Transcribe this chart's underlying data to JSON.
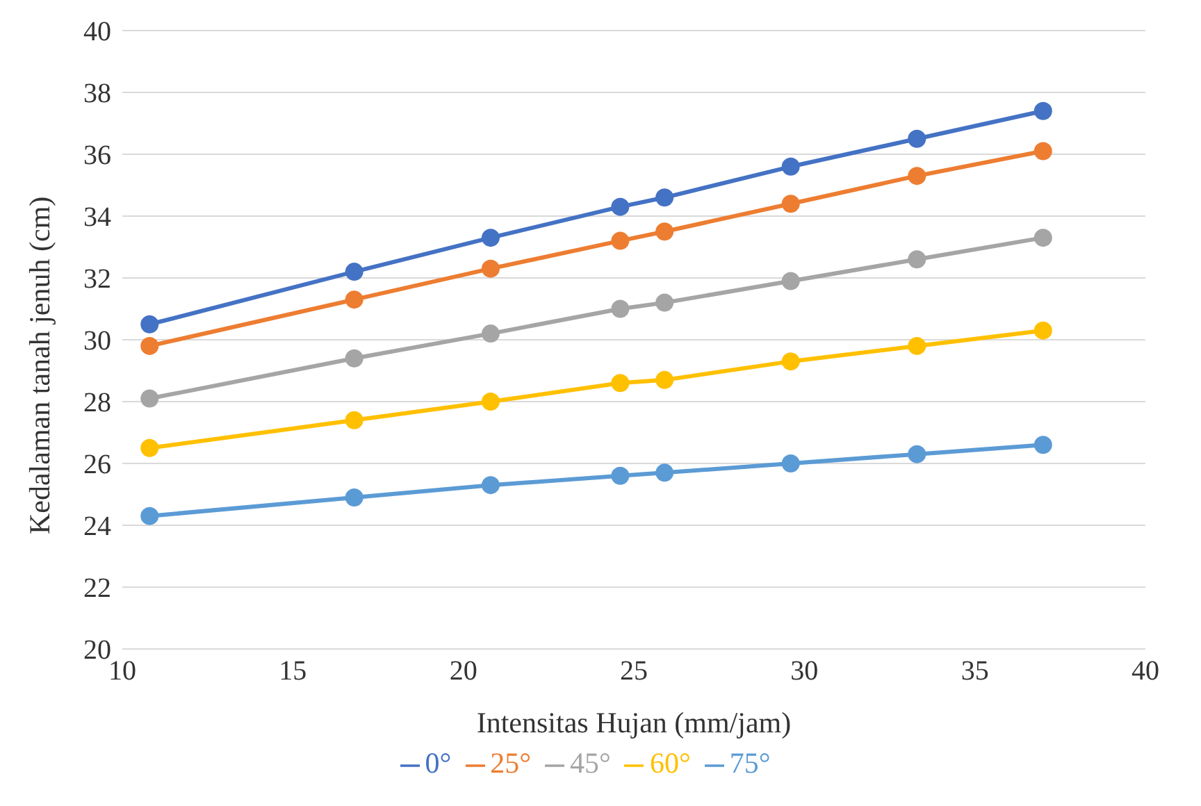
{
  "chart_data": {
    "type": "line",
    "xlabel": "Intensitas Hujan (mm/jam)",
    "ylabel": "Kedalaman tanah jenuh (cm)",
    "x": [
      10.8,
      16.8,
      20.8,
      24.6,
      25.9,
      29.6,
      33.3,
      37.0
    ],
    "series": [
      {
        "name": "0°",
        "color": "#4472c4",
        "values": [
          30.5,
          32.2,
          33.3,
          34.3,
          34.6,
          35.6,
          36.5,
          37.4
        ]
      },
      {
        "name": "25°",
        "color": "#ed7d31",
        "values": [
          29.8,
          31.3,
          32.3,
          33.2,
          33.5,
          34.4,
          35.3,
          36.1
        ]
      },
      {
        "name": "45°",
        "color": "#a5a5a5",
        "values": [
          28.1,
          29.4,
          30.2,
          31.0,
          31.2,
          31.9,
          32.6,
          33.3
        ]
      },
      {
        "name": "60°",
        "color": "#ffc000",
        "values": [
          26.5,
          27.4,
          28.0,
          28.6,
          28.7,
          29.3,
          29.8,
          30.3
        ]
      },
      {
        "name": "75°",
        "color": "#5b9bd5",
        "values": [
          24.3,
          24.9,
          25.3,
          25.6,
          25.7,
          26.0,
          26.3,
          26.6
        ]
      }
    ],
    "xlim": [
      10,
      40
    ],
    "xticks": [
      10,
      15,
      20,
      25,
      30,
      35,
      40
    ],
    "ylim": [
      20,
      40
    ],
    "yticks": [
      20,
      22,
      24,
      26,
      28,
      30,
      32,
      34,
      36,
      38,
      40
    ],
    "grid": "y",
    "legend": "bottom",
    "marker": "circle",
    "line_style": "solid"
  }
}
